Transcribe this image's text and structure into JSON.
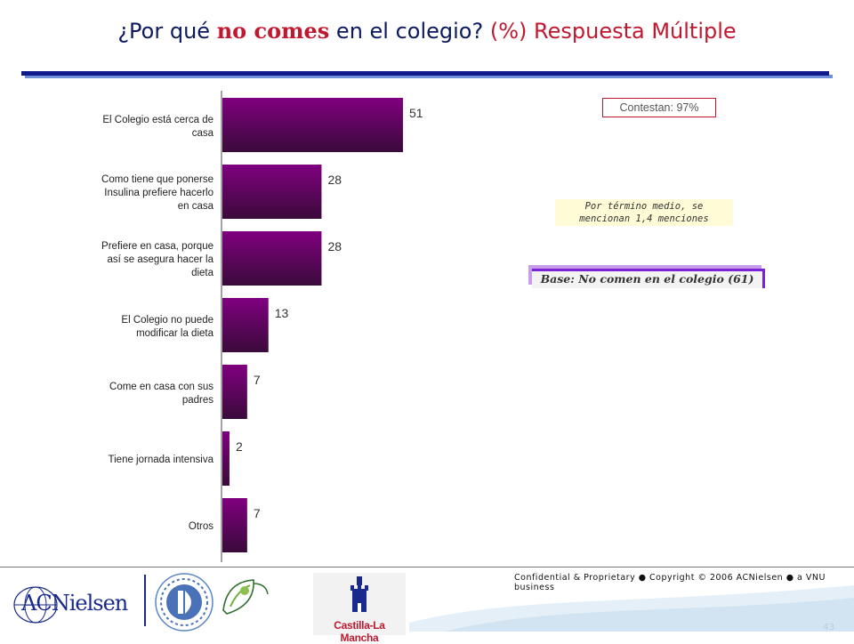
{
  "title": {
    "part1": "¿Por qué ",
    "bold": "no comes",
    "part2": " en el colegio? ",
    "part3": "(%) Respuesta Múltiple"
  },
  "chart_data": {
    "type": "bar",
    "orientation": "horizontal",
    "categories": [
      "El Colegio está cerca de casa",
      "Como tiene que ponerse Insulina prefiere hacerlo en casa",
      "Prefiere en casa, porque así se asegura hacer la dieta",
      "El Colegio no puede modificar la dieta",
      "Come en casa con sus padres",
      "Tiene jornada intensiva",
      "Otros"
    ],
    "values": [
      51,
      28,
      28,
      13,
      7,
      2,
      7
    ],
    "title": "",
    "xlabel": "",
    "ylabel": "",
    "xlim": [
      0,
      100
    ],
    "grid": false,
    "legend": "none",
    "bar_color_top": "#800080",
    "bar_color_bottom": "#3a0a3a"
  },
  "notes": {
    "contestan": "Contestan: 97%",
    "mean_line1": "Por término medio, se",
    "mean_line2": "mencionan 1,4 menciones",
    "base": "Base: No comen en el colegio (61)"
  },
  "footer": {
    "confidential": "Confidential & Proprietary ● Copyright © 2006 ACNielsen ● a VNU business",
    "page": "43",
    "logo_acnielsen": "ACNielsen",
    "logo_clm": "Castilla-La Mancha"
  },
  "colors": {
    "title_blue": "#0a1a5c",
    "title_red": "#c0182f",
    "rule_blue": "#111a8c"
  }
}
